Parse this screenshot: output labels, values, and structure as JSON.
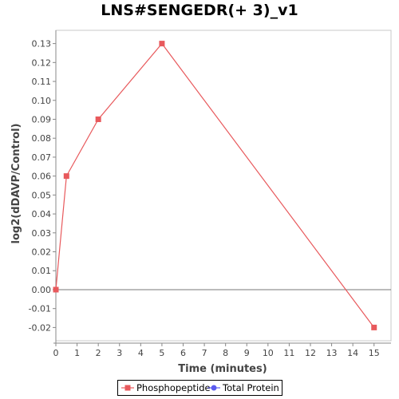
{
  "chart_data": {
    "type": "line",
    "title": "LNS#SENGEDR(+ 3)_v1",
    "xlabel": "Time (minutes)",
    "ylabel": "log2(dDAVP/Control)",
    "xlim": [
      0,
      15.8
    ],
    "ylim": [
      -0.027,
      0.137
    ],
    "x_ticks": [
      "0",
      "1",
      "2",
      "3",
      "4",
      "5",
      "6",
      "7",
      "8",
      "9",
      "10",
      "11",
      "12",
      "13",
      "14",
      "15"
    ],
    "y_ticks": [
      "-0.02",
      "-0.01",
      "0.00",
      "0.01",
      "0.02",
      "0.03",
      "0.04",
      "0.05",
      "0.06",
      "0.07",
      "0.08",
      "0.09",
      "0.10",
      "0.11",
      "0.12",
      "0.13"
    ],
    "grid": false,
    "zero_line": true,
    "legend_position": "bottom",
    "series": [
      {
        "name": "Phosphopeptide",
        "color": "#e8595c",
        "marker": "square",
        "x": [
          0,
          0.5,
          2,
          5,
          15
        ],
        "y": [
          0.0,
          0.06,
          0.09,
          0.13,
          -0.02
        ]
      },
      {
        "name": "Total Protein",
        "color": "#5b5bef",
        "marker": "circle",
        "x": [],
        "y": []
      }
    ]
  }
}
